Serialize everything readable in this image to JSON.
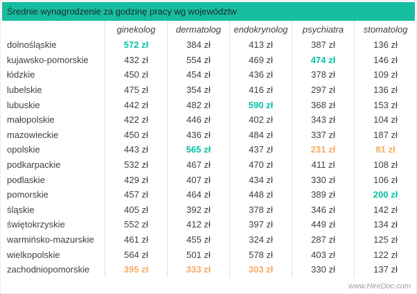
{
  "title": "Średnie wynagrodzenie za godzinę pracy wg województw",
  "watermark": "www.HireDoc.com",
  "colors": {
    "header_bg": "#16BDA1",
    "title_text": "#1F2A28",
    "body_text": "#3C4043",
    "highlight_max": "#0ABFA4",
    "highlight_min": "#F7A964",
    "divider": "#E0E0E0",
    "watermark_text": "#9E9E9E"
  },
  "chart_data": {
    "type": "table",
    "title": "Średnie wynagrodzenie za godzinę pracy wg województw",
    "unit": "zł",
    "columns": [
      "ginekolog",
      "dermatolog",
      "endokrynolog",
      "psychiatra",
      "stomatolog"
    ],
    "highlight_legend": {
      "max": "highest value in column (teal)",
      "min": "lowest value in column (orange)"
    },
    "rows": [
      {
        "province": "dolnośląskie",
        "values": [
          572,
          384,
          413,
          387,
          136
        ],
        "highlights": [
          "max",
          null,
          null,
          null,
          null
        ]
      },
      {
        "province": "kujawsko-pomorskie",
        "values": [
          432,
          554,
          469,
          474,
          146
        ],
        "highlights": [
          null,
          null,
          null,
          "max",
          null
        ]
      },
      {
        "province": "łódzkie",
        "values": [
          450,
          454,
          436,
          378,
          109
        ],
        "highlights": [
          null,
          null,
          null,
          null,
          null
        ]
      },
      {
        "province": "lubelskie",
        "values": [
          475,
          354,
          416,
          297,
          136
        ],
        "highlights": [
          null,
          null,
          null,
          null,
          null
        ]
      },
      {
        "province": "lubuskie",
        "values": [
          442,
          482,
          590,
          368,
          153
        ],
        "highlights": [
          null,
          null,
          "max",
          null,
          null
        ]
      },
      {
        "province": "małopolskie",
        "values": [
          422,
          446,
          402,
          343,
          104
        ],
        "highlights": [
          null,
          null,
          null,
          null,
          null
        ]
      },
      {
        "province": "mazowieckie",
        "values": [
          450,
          436,
          484,
          337,
          187
        ],
        "highlights": [
          null,
          null,
          null,
          null,
          null
        ]
      },
      {
        "province": "opolskie",
        "values": [
          443,
          565,
          437,
          231,
          81
        ],
        "highlights": [
          null,
          "max",
          null,
          "min",
          "min"
        ]
      },
      {
        "province": "podkarpackie",
        "values": [
          532,
          467,
          470,
          411,
          108
        ],
        "highlights": [
          null,
          null,
          null,
          null,
          null
        ]
      },
      {
        "province": "podlaskie",
        "values": [
          429,
          407,
          434,
          330,
          106
        ],
        "highlights": [
          null,
          null,
          null,
          null,
          null
        ]
      },
      {
        "province": "pomorskie",
        "values": [
          457,
          464,
          448,
          389,
          200
        ],
        "highlights": [
          null,
          null,
          null,
          null,
          "max"
        ]
      },
      {
        "province": "śląskie",
        "values": [
          405,
          392,
          378,
          346,
          142
        ],
        "highlights": [
          null,
          null,
          null,
          null,
          null
        ]
      },
      {
        "province": "świętokrzyskie",
        "values": [
          552,
          412,
          397,
          449,
          134
        ],
        "highlights": [
          null,
          null,
          null,
          null,
          null
        ]
      },
      {
        "province": "warmińsko-mazurskie",
        "values": [
          461,
          455,
          324,
          287,
          125
        ],
        "highlights": [
          null,
          null,
          null,
          null,
          null
        ]
      },
      {
        "province": "wielkopolskie",
        "values": [
          564,
          501,
          578,
          403,
          122
        ],
        "highlights": [
          null,
          null,
          null,
          null,
          null
        ]
      },
      {
        "province": "zachodniopomorskie",
        "values": [
          395,
          333,
          303,
          330,
          137
        ],
        "highlights": [
          "min",
          "min",
          "min",
          null,
          null
        ]
      }
    ]
  }
}
